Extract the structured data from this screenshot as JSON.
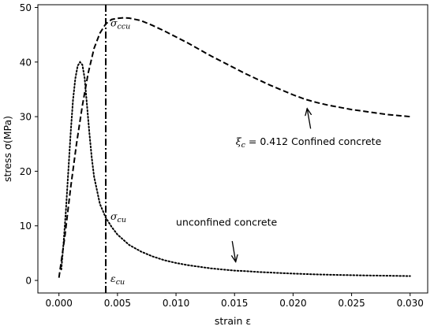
{
  "chart_data": {
    "type": "line",
    "xlabel": "strain ε",
    "ylabel": "stress σ(MPa)",
    "xlim": [
      -0.0018,
      0.0315
    ],
    "ylim": [
      -2.3,
      50.5
    ],
    "x_ticks": [
      0.0,
      0.005,
      0.01,
      0.015,
      0.02,
      0.025,
      0.03
    ],
    "x_tick_labels": [
      "0.000",
      "0.005",
      "0.010",
      "0.015",
      "0.020",
      "0.025",
      "0.030"
    ],
    "y_ticks": [
      0,
      10,
      20,
      30,
      40,
      50
    ],
    "y_tick_labels": [
      "0",
      "10",
      "20",
      "30",
      "40",
      "50"
    ],
    "grid": false,
    "series": [
      {
        "style": "dashed",
        "points": [
          [
            0.0,
            0.5
          ],
          [
            0.0005,
            8
          ],
          [
            0.001,
            17
          ],
          [
            0.0015,
            25
          ],
          [
            0.002,
            32
          ],
          [
            0.0025,
            38
          ],
          [
            0.003,
            42.5
          ],
          [
            0.0035,
            45.3
          ],
          [
            0.004,
            47.0
          ],
          [
            0.0045,
            47.8
          ],
          [
            0.005,
            48.0
          ],
          [
            0.0055,
            48.1
          ],
          [
            0.006,
            48.05
          ],
          [
            0.007,
            47.6
          ],
          [
            0.008,
            46.7
          ],
          [
            0.009,
            45.7
          ],
          [
            0.01,
            44.6
          ],
          [
            0.011,
            43.5
          ],
          [
            0.012,
            42.3
          ],
          [
            0.013,
            41.1
          ],
          [
            0.014,
            40.0
          ],
          [
            0.015,
            38.9
          ],
          [
            0.016,
            37.8
          ],
          [
            0.017,
            36.8
          ],
          [
            0.018,
            35.8
          ],
          [
            0.019,
            34.9
          ],
          [
            0.02,
            34.0
          ],
          [
            0.021,
            33.2
          ],
          [
            0.022,
            32.6
          ],
          [
            0.023,
            32.1
          ],
          [
            0.024,
            31.7
          ],
          [
            0.025,
            31.3
          ],
          [
            0.026,
            31.0
          ],
          [
            0.027,
            30.7
          ],
          [
            0.028,
            30.4
          ],
          [
            0.029,
            30.2
          ],
          [
            0.03,
            30.0
          ]
        ]
      },
      {
        "style": "dotted",
        "points": [
          [
            0.0002,
            2
          ],
          [
            0.0004,
            7
          ],
          [
            0.0006,
            13
          ],
          [
            0.0008,
            20
          ],
          [
            0.001,
            27
          ],
          [
            0.0012,
            33
          ],
          [
            0.0014,
            37
          ],
          [
            0.0016,
            39.3
          ],
          [
            0.0018,
            40.0
          ],
          [
            0.002,
            39.5
          ],
          [
            0.0022,
            37
          ],
          [
            0.0024,
            32
          ],
          [
            0.0026,
            27
          ],
          [
            0.0028,
            22.5
          ],
          [
            0.003,
            19
          ],
          [
            0.0035,
            14
          ],
          [
            0.004,
            11.5
          ],
          [
            0.0045,
            9.8
          ],
          [
            0.005,
            8.4
          ],
          [
            0.006,
            6.5
          ],
          [
            0.007,
            5.3
          ],
          [
            0.008,
            4.4
          ],
          [
            0.009,
            3.7
          ],
          [
            0.01,
            3.2
          ],
          [
            0.011,
            2.8
          ],
          [
            0.012,
            2.5
          ],
          [
            0.013,
            2.2
          ],
          [
            0.014,
            2.0
          ],
          [
            0.015,
            1.8
          ],
          [
            0.016,
            1.7
          ],
          [
            0.017,
            1.55
          ],
          [
            0.018,
            1.45
          ],
          [
            0.019,
            1.35
          ],
          [
            0.02,
            1.25
          ],
          [
            0.021,
            1.18
          ],
          [
            0.022,
            1.1
          ],
          [
            0.023,
            1.05
          ],
          [
            0.024,
            1.0
          ],
          [
            0.025,
            0.96
          ],
          [
            0.026,
            0.92
          ],
          [
            0.027,
            0.89
          ],
          [
            0.028,
            0.86
          ],
          [
            0.029,
            0.83
          ],
          [
            0.03,
            0.8
          ]
        ]
      }
    ],
    "vertical_line": {
      "x": 0.004,
      "style": "dashdot"
    },
    "annotations": [
      {
        "id": "sigma_ccu",
        "main": "σ",
        "sub": "ccu",
        "x": 0.0044,
        "y": 46.5
      },
      {
        "id": "sigma_cu",
        "main": "σ",
        "sub": "cu",
        "x": 0.0044,
        "y": 11.1
      },
      {
        "id": "eps_cu",
        "main": "ε",
        "sub": "cu",
        "x": 0.0044,
        "y": -0.3
      },
      {
        "id": "confined",
        "text_prefix": "ξ",
        "text_sub": "c",
        "text_rest": " = 0.412 Confined concrete",
        "x": 0.0151,
        "y": 24.8,
        "arrow_from": [
          0.0215,
          27.8
        ],
        "arrow_to": [
          0.0212,
          31.5
        ]
      },
      {
        "id": "unconfined",
        "text": "unconfined concrete",
        "x": 0.01,
        "y": 10.0,
        "arrow_from": [
          0.0148,
          7.2
        ],
        "arrow_to": [
          0.0151,
          3.4
        ]
      }
    ]
  }
}
